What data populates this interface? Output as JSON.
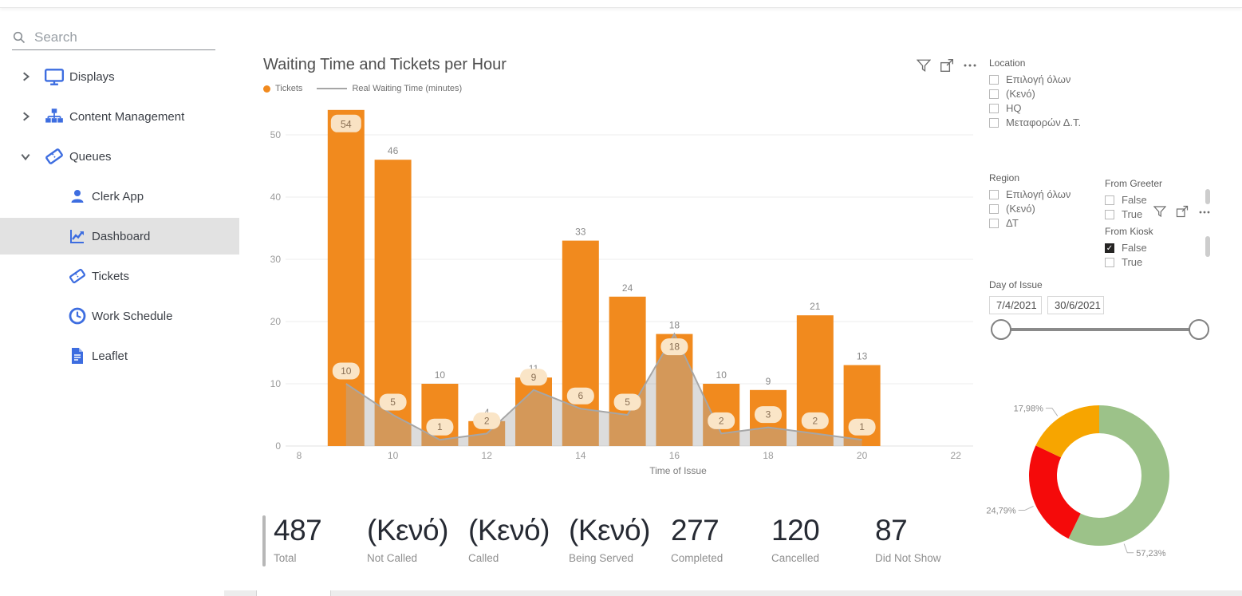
{
  "icons": {
    "search": "magnifier",
    "displays": "monitor",
    "content_management": "sitemap",
    "queues": "ticket",
    "clerk_app": "person",
    "dashboard": "line-chart",
    "tickets": "ticket",
    "work_schedule": "clock",
    "leaflet": "document",
    "visual_header": [
      "filter-funnel",
      "focus-mode",
      "more-options"
    ]
  },
  "colors": {
    "accent_blue": "#3D6DE0",
    "bar_orange": "#F18A1E",
    "line_gray": "#A6A6A6",
    "area_gray": "rgba(172,172,172,0.42)",
    "label_pill_bg": "#FAE5C7",
    "donut_green": "#9CC289",
    "donut_red": "#F50A0A",
    "donut_orange": "#F7A500",
    "sidebar_active_bg": "#E2E2E2"
  },
  "sidebar": {
    "search_placeholder": "Search",
    "items": [
      {
        "label": "Displays",
        "expanded": false
      },
      {
        "label": "Content Management",
        "expanded": false
      },
      {
        "label": "Queues",
        "expanded": true,
        "children": [
          {
            "label": "Clerk App",
            "active": false
          },
          {
            "label": "Dashboard",
            "active": true
          },
          {
            "label": "Tickets",
            "active": false
          },
          {
            "label": "Work Schedule",
            "active": false
          },
          {
            "label": "Leaflet",
            "active": false
          }
        ]
      }
    ]
  },
  "main_chart": {
    "title": "Waiting Time and Tickets per Hour"
  },
  "chart_data": [
    {
      "type": "bar",
      "subtype": "combo-bar-line",
      "title": "Waiting Time and Tickets per Hour",
      "xlabel": "Time of Issue",
      "ylabel": "",
      "x_ticks": [
        8,
        10,
        12,
        14,
        16,
        18,
        20,
        22
      ],
      "y_ticks": [
        0,
        10,
        20,
        30,
        40,
        50
      ],
      "ylim": [
        0,
        55
      ],
      "hours": [
        9,
        10,
        11,
        12,
        13,
        14,
        15,
        16,
        17,
        18,
        19,
        20
      ],
      "series": [
        {
          "name": "Tickets",
          "type": "bar",
          "color": "#F18A1E",
          "values": [
            54,
            46,
            10,
            4,
            11,
            33,
            24,
            18,
            10,
            9,
            21,
            13
          ],
          "inside_label_index": 0
        },
        {
          "name": "Real Waiting Time (minutes)",
          "type": "line",
          "color": "#A6A6A6",
          "values": [
            10,
            5,
            1,
            2,
            9,
            6,
            5,
            18,
            2,
            3,
            2,
            1
          ],
          "label_below": [
            0,
            0,
            0,
            0,
            0,
            0,
            0,
            1,
            0,
            0,
            0,
            0
          ]
        }
      ],
      "legend_position": "top-left",
      "grid": true
    },
    {
      "type": "pie",
      "subtype": "donut",
      "slices": [
        {
          "label": "57,23%",
          "value": 57.23,
          "color": "#9CC289",
          "label_angle": 160
        },
        {
          "label": "24,79%",
          "value": 24.79,
          "color": "#F50A0A",
          "label_angle": 245
        },
        {
          "label": "17,98%",
          "value": 17.98,
          "color": "#F7A500",
          "label_angle": 325
        }
      ]
    }
  ],
  "filters": {
    "location": {
      "title": "Location",
      "options": [
        {
          "label": "Επιλογή όλων",
          "checked": false
        },
        {
          "label": "(Κενό)",
          "checked": false
        },
        {
          "label": "HQ",
          "checked": false
        },
        {
          "label": "Μεταφορών Δ.Τ.",
          "checked": false
        }
      ]
    },
    "region": {
      "title": "Region",
      "options": [
        {
          "label": "Επιλογή όλων",
          "checked": false
        },
        {
          "label": "(Κενό)",
          "checked": false
        },
        {
          "label": "ΔΤ",
          "checked": false
        }
      ]
    },
    "from_greeter": {
      "title": "From Greeter",
      "options": [
        {
          "label": "False",
          "checked": false
        },
        {
          "label": "True",
          "checked": false
        }
      ]
    },
    "from_kiosk": {
      "title": "From Kiosk",
      "options": [
        {
          "label": "False",
          "checked": true
        },
        {
          "label": "True",
          "checked": false
        }
      ]
    },
    "day_of_issue": {
      "title": "Day of Issue",
      "start": "7/4/2021",
      "end": "30/6/2021"
    }
  },
  "stats": [
    {
      "value": "487",
      "label": "Total"
    },
    {
      "value": "(Κενό)",
      "label": "Not Called"
    },
    {
      "value": "(Κενό)",
      "label": "Called"
    },
    {
      "value": "(Κενό)",
      "label": "Being Served"
    },
    {
      "value": "277",
      "label": "Completed"
    },
    {
      "value": "120",
      "label": "Cancelled"
    },
    {
      "value": "87",
      "label": "Did Not Show"
    }
  ]
}
